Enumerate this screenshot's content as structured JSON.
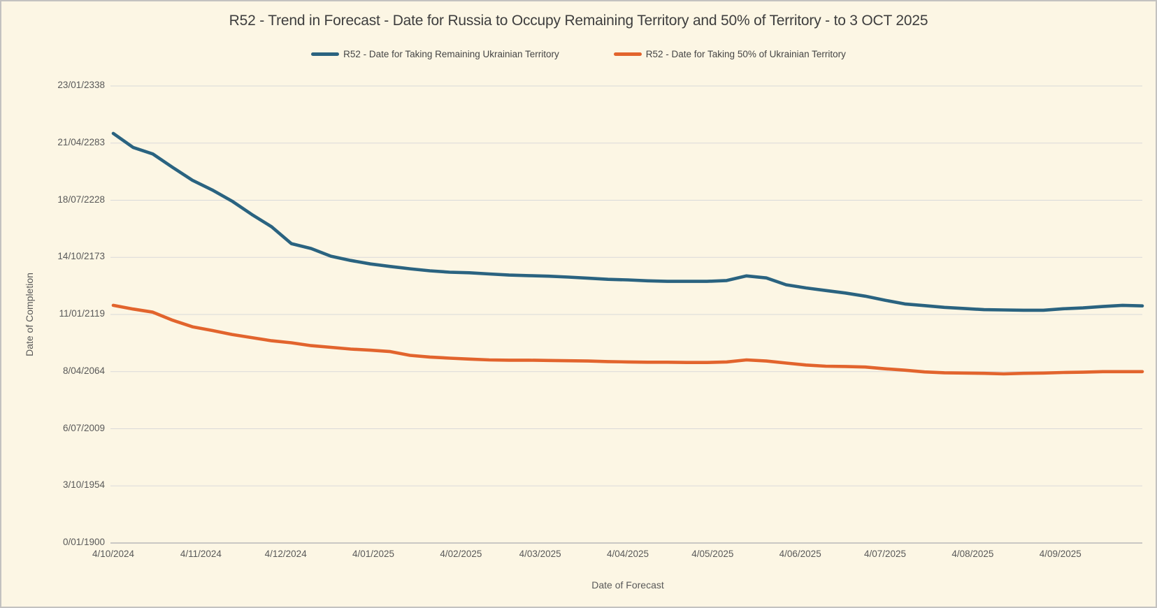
{
  "page": {
    "window_title": "R52 forecast trend chart"
  },
  "chart_data": {
    "type": "line",
    "title": "R52 - Trend in Forecast - Date for Russia to Occupy Remaining Territory and 50% of Territory - to 3 OCT 2025",
    "xlabel": "Date of Forecast",
    "ylabel": "Date of Completion",
    "legend_position": "top",
    "grid": "horizontal-only",
    "background_color": "#fcf6e4",
    "gridline_color": "#d9d9d9",
    "axis_line_color": "#b9b9b9",
    "text_color": "#595959",
    "y_axis": {
      "unit": "date rendered as Excel day serial (0 = 0/01/1900)",
      "min_serial": 0,
      "max_serial": 160000,
      "ticks": [
        {
          "label": "0/01/1900",
          "serial": 0
        },
        {
          "label": "3/10/1954",
          "serial": 20000
        },
        {
          "label": "6/07/2009",
          "serial": 40000
        },
        {
          "label": "8/04/2064",
          "serial": 60000
        },
        {
          "label": "11/01/2119",
          "serial": 80000
        },
        {
          "label": "14/10/2173",
          "serial": 100000
        },
        {
          "label": "18/07/2228",
          "serial": 120000
        },
        {
          "label": "21/04/2283",
          "serial": 140000
        },
        {
          "label": "23/01/2338",
          "serial": 160000
        }
      ]
    },
    "x_tick_labels": [
      "4/10/2024",
      "4/11/2024",
      "4/12/2024",
      "4/01/2025",
      "4/02/2025",
      "4/03/2025",
      "4/04/2025",
      "4/05/2025",
      "4/06/2025",
      "4/07/2025",
      "4/08/2025",
      "4/09/2025"
    ],
    "x_dates": [
      "4/10/2024",
      "11/10/2024",
      "18/10/2024",
      "25/10/2024",
      "1/11/2024",
      "8/11/2024",
      "15/11/2024",
      "22/11/2024",
      "29/11/2024",
      "6/12/2024",
      "13/12/2024",
      "20/12/2024",
      "27/12/2024",
      "3/01/2025",
      "10/01/2025",
      "17/01/2025",
      "24/01/2025",
      "31/01/2025",
      "7/02/2025",
      "14/02/2025",
      "21/02/2025",
      "28/02/2025",
      "7/03/2025",
      "14/03/2025",
      "21/03/2025",
      "28/03/2025",
      "4/04/2025",
      "11/04/2025",
      "18/04/2025",
      "25/04/2025",
      "2/05/2025",
      "9/05/2025",
      "16/05/2025",
      "23/05/2025",
      "30/05/2025",
      "6/06/2025",
      "13/06/2025",
      "20/06/2025",
      "27/06/2025",
      "4/07/2025",
      "11/07/2025",
      "18/07/2025",
      "25/07/2025",
      "1/08/2025",
      "8/08/2025",
      "15/08/2025",
      "22/08/2025",
      "29/08/2025",
      "5/09/2025",
      "12/09/2025",
      "19/09/2025",
      "26/09/2025",
      "3/10/2025"
    ],
    "series": [
      {
        "name": "R52 - Date for Taking Remaining Ukrainian Territory",
        "color": "#2a6380",
        "values_serial": [
          143400,
          138500,
          136200,
          131500,
          127000,
          123600,
          119700,
          115000,
          110700,
          104800,
          103100,
          100400,
          98900,
          97700,
          96800,
          96000,
          95300,
          94800,
          94600,
          94200,
          93800,
          93600,
          93400,
          93100,
          92700,
          92300,
          92100,
          91800,
          91600,
          91600,
          91600,
          91900,
          93500,
          92800,
          90400,
          89300,
          88400,
          87500,
          86400,
          85000,
          83700,
          83100,
          82500,
          82100,
          81700,
          81600,
          81500,
          81500,
          82000,
          82300,
          82800,
          83200,
          83000
        ]
      },
      {
        "name": "R52 - Date for Taking  50% of Ukrainian Territory",
        "color": "#e2642d",
        "values_serial": [
          83200,
          81900,
          80800,
          78000,
          75700,
          74400,
          73000,
          71900,
          70800,
          70100,
          69100,
          68500,
          67900,
          67500,
          67000,
          65700,
          65100,
          64700,
          64400,
          64100,
          64000,
          64000,
          63900,
          63800,
          63700,
          63500,
          63400,
          63300,
          63300,
          63200,
          63200,
          63400,
          64100,
          63700,
          63000,
          62300,
          61900,
          61800,
          61600,
          61000,
          60500,
          59900,
          59600,
          59500,
          59400,
          59200,
          59400,
          59500,
          59700,
          59800,
          60000,
          60000,
          60000
        ]
      }
    ]
  }
}
